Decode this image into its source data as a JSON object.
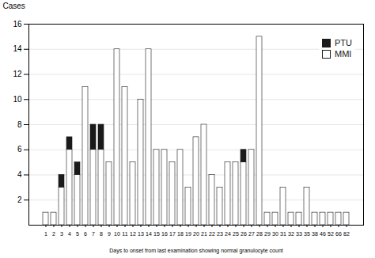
{
  "chart_data": {
    "type": "bar",
    "stacked": true,
    "categories": [
      "1",
      "2",
      "3",
      "4",
      "5",
      "6",
      "7",
      "8",
      "9",
      "10",
      "11",
      "12",
      "13",
      "14",
      "15",
      "16",
      "17",
      "18",
      "19",
      "20",
      "21",
      "22",
      "23",
      "24",
      "25",
      "26",
      "27",
      "28",
      "29",
      "30",
      "31",
      "32",
      "33",
      "35",
      "38",
      "46",
      "52",
      "66",
      "82"
    ],
    "series": [
      {
        "name": "MMI",
        "color": "#ffffff",
        "values": [
          1,
          1,
          3,
          6,
          4,
          11,
          6,
          6,
          5,
          14,
          11,
          5,
          10,
          14,
          6,
          6,
          5,
          6,
          3,
          7,
          8,
          4,
          3,
          5,
          5,
          5,
          6,
          15,
          1,
          1,
          3,
          1,
          1,
          3,
          1,
          1,
          1,
          1,
          1
        ]
      },
      {
        "name": "PTU",
        "color": "#1a1a1a",
        "values": [
          0,
          0,
          1,
          1,
          1,
          0,
          2,
          2,
          0,
          0,
          0,
          0,
          0,
          0,
          0,
          0,
          0,
          0,
          0,
          0,
          0,
          0,
          0,
          0,
          0,
          1,
          0,
          0,
          0,
          0,
          0,
          0,
          0,
          0,
          0,
          0,
          0,
          0,
          0
        ]
      }
    ],
    "xlabel": "Days to onset from last examination showing normal granulocyte count",
    "ylabel": "Cases",
    "ylim": [
      0,
      16
    ],
    "yticks": [
      2,
      4,
      6,
      8,
      10,
      12,
      14,
      16
    ],
    "grid": true,
    "legend": "upper right"
  }
}
